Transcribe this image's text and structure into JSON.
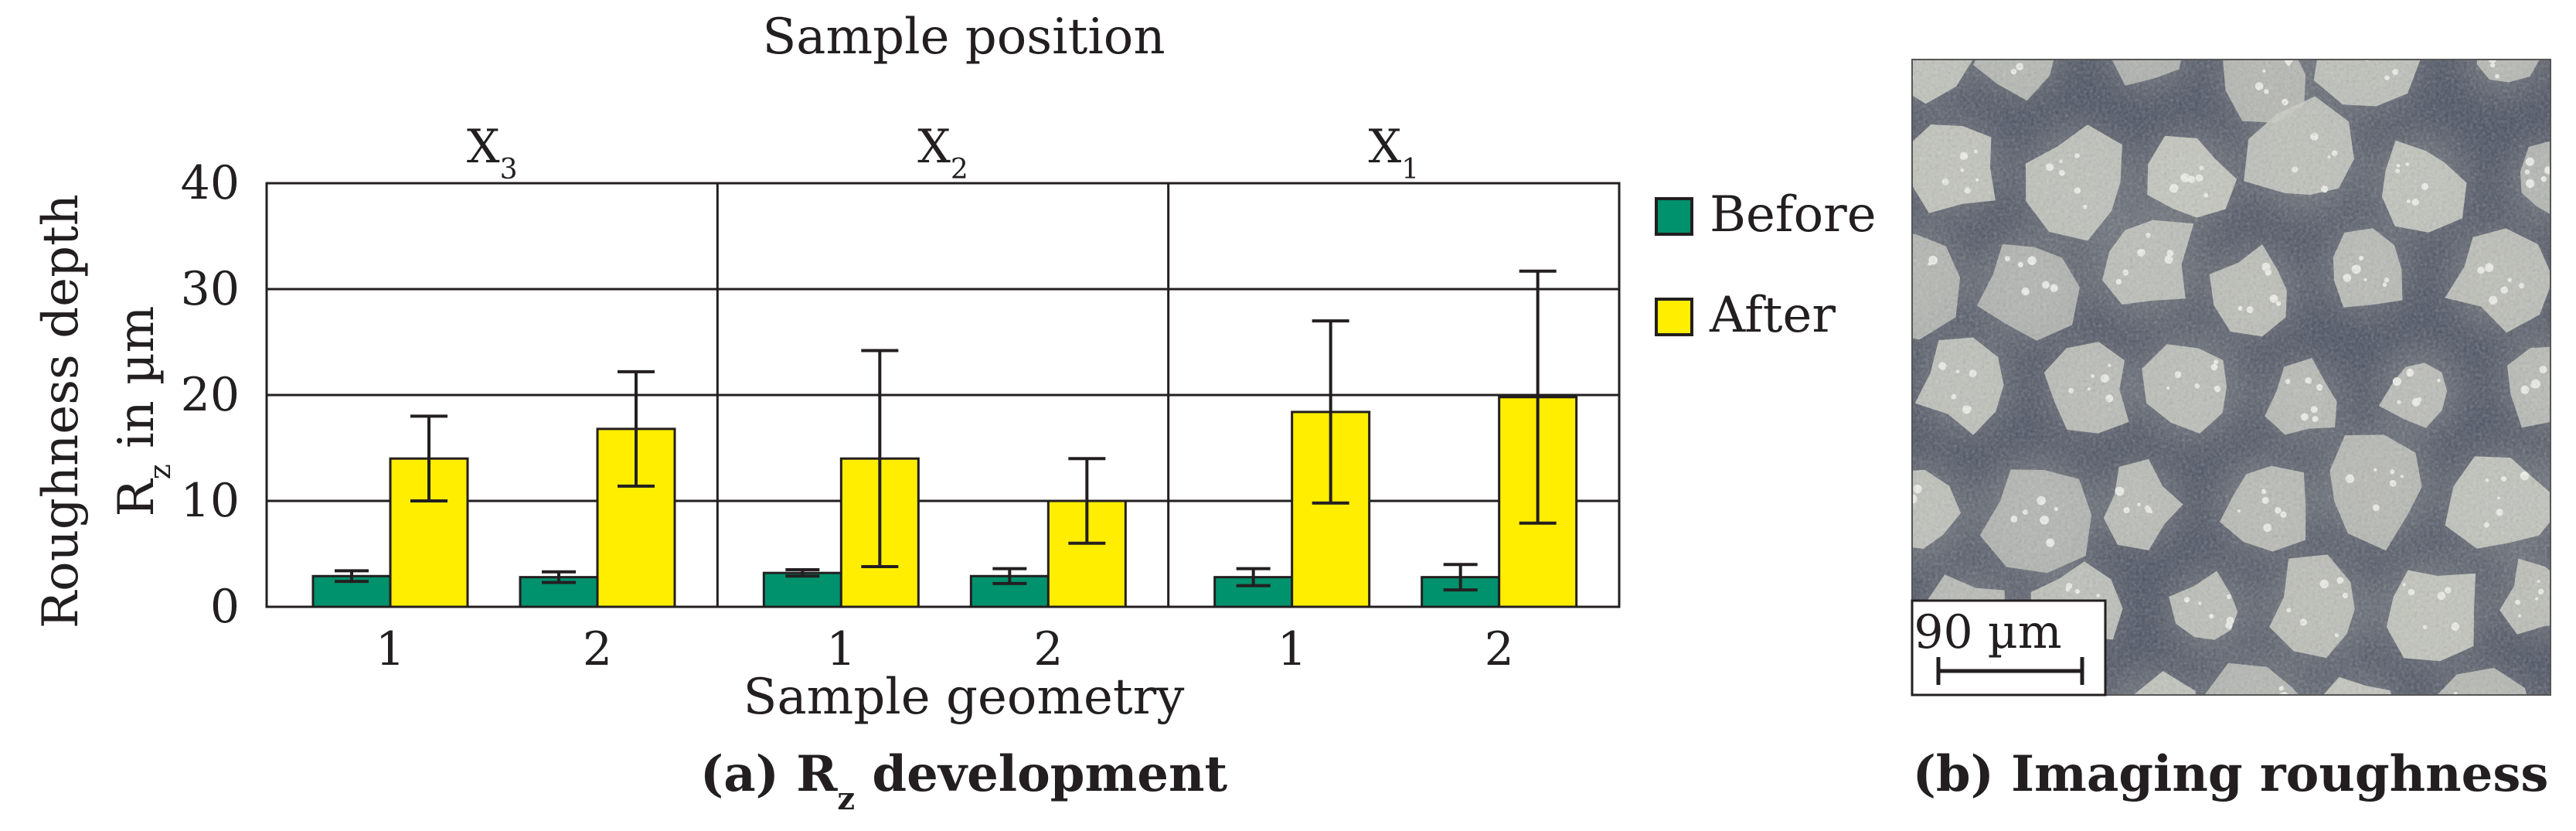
{
  "chart_data": {
    "type": "bar",
    "top_title": "Sample position",
    "panel_labels": [
      {
        "base": "X",
        "sub": "3"
      },
      {
        "base": "X",
        "sub": "2"
      },
      {
        "base": "X",
        "sub": "1"
      }
    ],
    "categories": [
      "1",
      "2",
      "1",
      "2",
      "1",
      "2"
    ],
    "xlabel": "Sample geometry",
    "ylabel_line1": "Roughness depth",
    "ylabel_line2": {
      "base": "R",
      "sub": "z",
      "rest": " in µm"
    },
    "ylim": [
      0,
      40
    ],
    "yticks": [
      0,
      10,
      20,
      30,
      40
    ],
    "grid": true,
    "legend_position": "right",
    "series": [
      {
        "name": "Before",
        "color": "#00926c",
        "values": [
          2.9,
          2.8,
          3.2,
          2.9,
          2.8,
          2.8
        ],
        "error": [
          0.5,
          0.5,
          0.3,
          0.7,
          0.8,
          1.2
        ]
      },
      {
        "name": "After",
        "color": "#ffee00",
        "values": [
          14.0,
          16.8,
          14.0,
          10.0,
          18.4,
          19.8
        ],
        "error": [
          4.0,
          5.4,
          10.2,
          4.0,
          8.6,
          11.9
        ]
      }
    ],
    "caption": {
      "prefix": "(a) R",
      "sub": "z",
      "rest": " development"
    }
  },
  "image_panel": {
    "scale_bar_label": "90 µm",
    "caption": "(b) Imaging roughness",
    "colors": {
      "background": "#4a5060",
      "particle": "#c9cbc2",
      "particle_light": "#eeeeea"
    }
  }
}
